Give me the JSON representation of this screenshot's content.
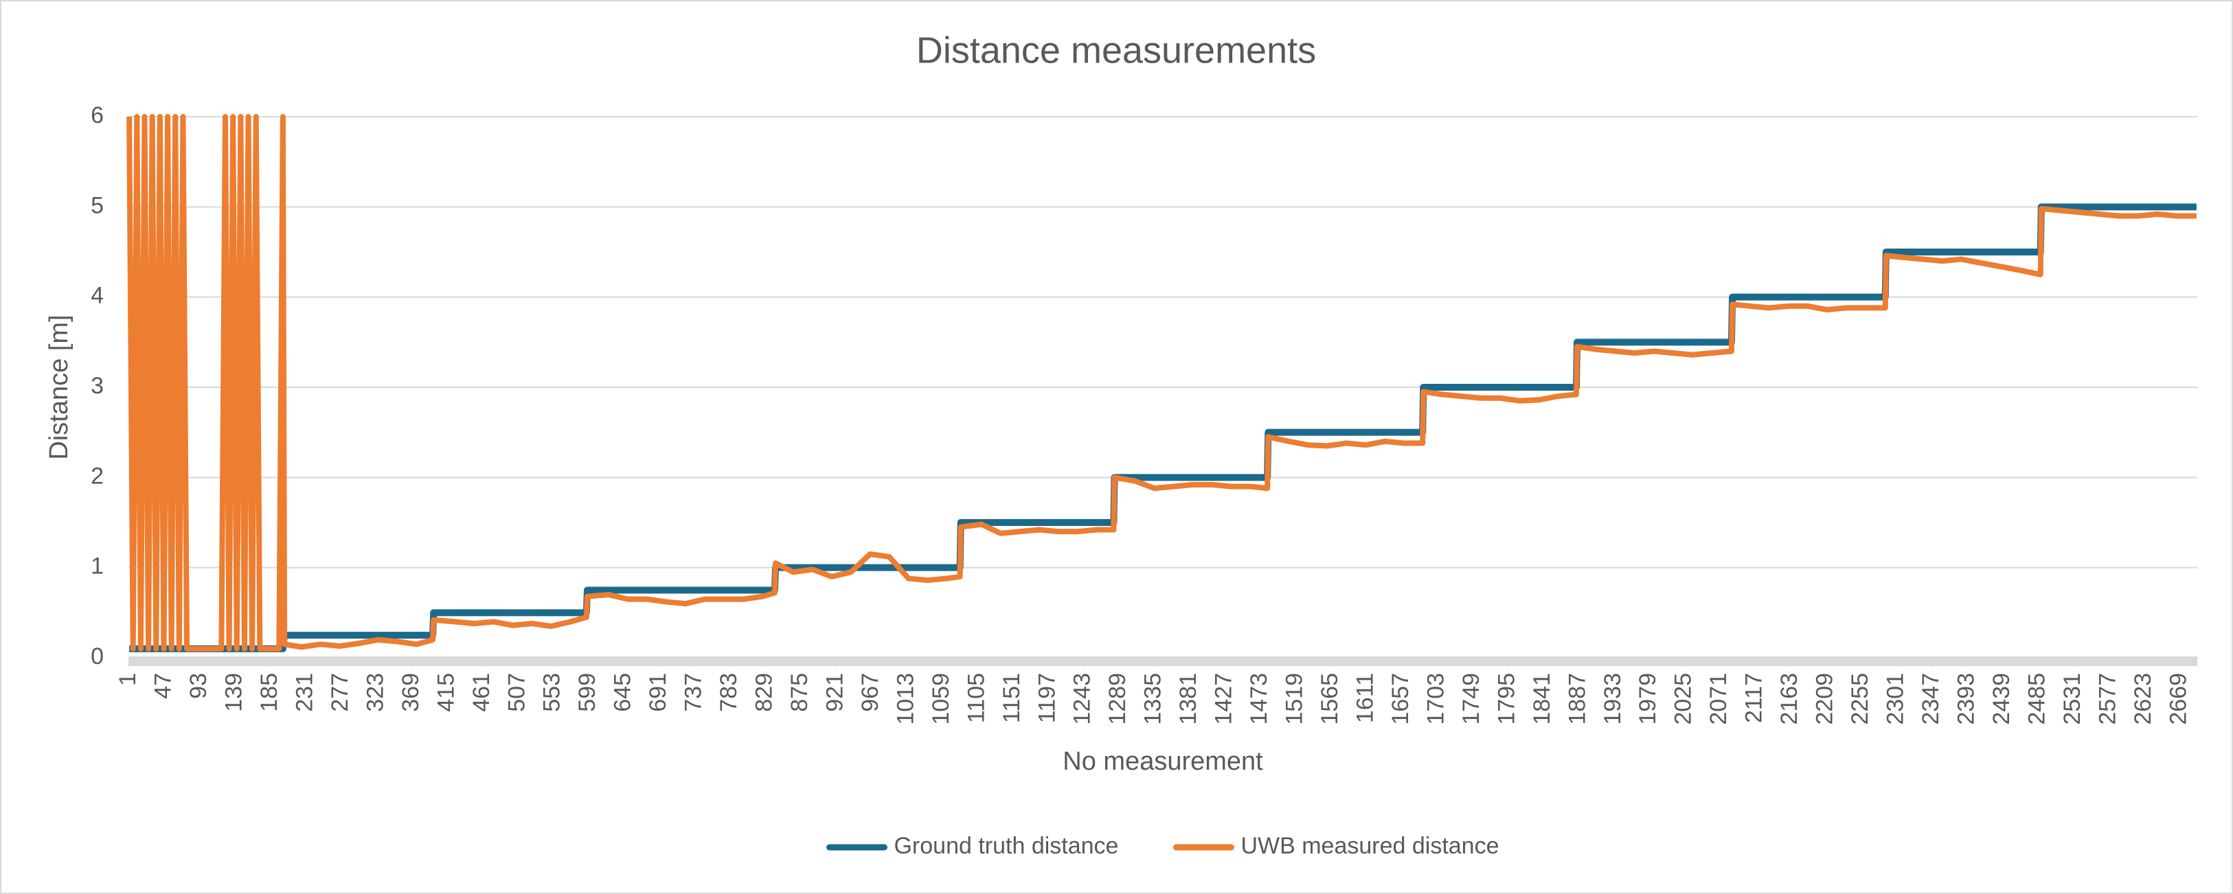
{
  "chart_data": {
    "type": "line",
    "title": "Distance measurements",
    "x_label": "No measurement",
    "y_label": "Distance [m]",
    "x": [
      1,
      6,
      11,
      16,
      21,
      26,
      31,
      36,
      41,
      46,
      51,
      56,
      61,
      66,
      71,
      76,
      81,
      86,
      91,
      96,
      101,
      106,
      111,
      116,
      121,
      126,
      131,
      136,
      141,
      146,
      151,
      156,
      161,
      166,
      171,
      176,
      181,
      186,
      191,
      196,
      201,
      203,
      225,
      250,
      275,
      300,
      325,
      350,
      375,
      396,
      397,
      425,
      450,
      475,
      500,
      525,
      550,
      575,
      596,
      597,
      625,
      650,
      675,
      700,
      725,
      750,
      775,
      800,
      825,
      841,
      842,
      865,
      890,
      915,
      940,
      965,
      990,
      1015,
      1040,
      1065,
      1082,
      1083,
      1110,
      1135,
      1160,
      1185,
      1210,
      1235,
      1260,
      1282,
      1283,
      1310,
      1335,
      1360,
      1385,
      1410,
      1435,
      1460,
      1482,
      1483,
      1510,
      1535,
      1560,
      1585,
      1610,
      1635,
      1660,
      1684,
      1685,
      1710,
      1735,
      1760,
      1785,
      1810,
      1835,
      1860,
      1884,
      1885,
      1910,
      1935,
      1960,
      1985,
      2010,
      2035,
      2060,
      2086,
      2087,
      2110,
      2135,
      2160,
      2185,
      2210,
      2235,
      2260,
      2286,
      2287,
      2310,
      2335,
      2360,
      2385,
      2410,
      2435,
      2460,
      2488,
      2489,
      2515,
      2540,
      2565,
      2590,
      2615,
      2640,
      2665,
      2691
    ],
    "series": [
      {
        "name": "Ground truth distance",
        "color": "#1b6a8c",
        "values": [
          0.1,
          0.1,
          0.1,
          0.1,
          0.1,
          0.1,
          0.1,
          0.1,
          0.1,
          0.1,
          0.1,
          0.1,
          0.1,
          0.1,
          0.1,
          0.1,
          0.1,
          0.1,
          0.1,
          0.1,
          0.1,
          0.1,
          0.1,
          0.1,
          0.1,
          0.1,
          0.1,
          0.1,
          0.1,
          0.1,
          0.1,
          0.1,
          0.1,
          0.1,
          0.1,
          0.1,
          0.1,
          0.1,
          0.1,
          0.1,
          0.1,
          0.25,
          0.25,
          0.25,
          0.25,
          0.25,
          0.25,
          0.25,
          0.25,
          0.25,
          0.5,
          0.5,
          0.5,
          0.5,
          0.5,
          0.5,
          0.5,
          0.5,
          0.5,
          0.75,
          0.75,
          0.75,
          0.75,
          0.75,
          0.75,
          0.75,
          0.75,
          0.75,
          0.75,
          0.75,
          1,
          1,
          1,
          1,
          1,
          1,
          1,
          1,
          1,
          1,
          1,
          1.5,
          1.5,
          1.5,
          1.5,
          1.5,
          1.5,
          1.5,
          1.5,
          1.5,
          2,
          2,
          2,
          2,
          2,
          2,
          2,
          2,
          2,
          2.5,
          2.5,
          2.5,
          2.5,
          2.5,
          2.5,
          2.5,
          2.5,
          2.5,
          3,
          3,
          3,
          3,
          3,
          3,
          3,
          3,
          3,
          3.5,
          3.5,
          3.5,
          3.5,
          3.5,
          3.5,
          3.5,
          3.5,
          3.5,
          4,
          4,
          4,
          4,
          4,
          4,
          4,
          4,
          4,
          4.5,
          4.5,
          4.5,
          4.5,
          4.5,
          4.5,
          4.5,
          4.5,
          4.5,
          5,
          5,
          5,
          5,
          5,
          5,
          5,
          5,
          5
        ]
      },
      {
        "name": "UWB measured distance",
        "color": "#ed7d31",
        "values": [
          6,
          0.1,
          6,
          0.1,
          6,
          0.1,
          6,
          0.1,
          6,
          0.1,
          6,
          0.1,
          6,
          0.1,
          6,
          0.1,
          0.1,
          0.1,
          0.1,
          0.1,
          0.1,
          0.1,
          0.1,
          0.1,
          0.1,
          6,
          0.1,
          6,
          0.1,
          6,
          0.1,
          6,
          0.1,
          6,
          0.1,
          0.1,
          0.1,
          0.1,
          0.1,
          0.1,
          6,
          0.15,
          0.12,
          0.15,
          0.13,
          0.16,
          0.2,
          0.18,
          0.15,
          0.2,
          0.42,
          0.4,
          0.38,
          0.4,
          0.36,
          0.38,
          0.35,
          0.4,
          0.45,
          0.68,
          0.7,
          0.65,
          0.65,
          0.62,
          0.6,
          0.65,
          0.65,
          0.65,
          0.68,
          0.72,
          1.05,
          0.95,
          0.98,
          0.9,
          0.95,
          1.15,
          1.12,
          0.88,
          0.86,
          0.88,
          0.9,
          1.45,
          1.48,
          1.38,
          1.4,
          1.42,
          1.4,
          1.4,
          1.42,
          1.42,
          2,
          1.96,
          1.88,
          1.9,
          1.92,
          1.92,
          1.9,
          1.9,
          1.88,
          2.45,
          2.4,
          2.36,
          2.35,
          2.38,
          2.36,
          2.4,
          2.38,
          2.38,
          2.95,
          2.92,
          2.9,
          2.88,
          2.88,
          2.85,
          2.86,
          2.9,
          2.92,
          3.45,
          3.42,
          3.4,
          3.38,
          3.4,
          3.38,
          3.36,
          3.38,
          3.4,
          3.92,
          3.9,
          3.88,
          3.9,
          3.9,
          3.86,
          3.88,
          3.88,
          3.88,
          4.46,
          4.44,
          4.42,
          4.4,
          4.42,
          4.38,
          4.34,
          4.3,
          4.25,
          4.98,
          4.96,
          4.94,
          4.92,
          4.9,
          4.9,
          4.92,
          4.9,
          4.9
        ]
      }
    ],
    "xlim": [
      0,
      2692
    ],
    "xticks": [
      1,
      47,
      93,
      139,
      185,
      231,
      277,
      323,
      369,
      415,
      461,
      507,
      553,
      599,
      645,
      691,
      737,
      783,
      829,
      875,
      921,
      967,
      1013,
      1059,
      1105,
      1151,
      1197,
      1243,
      1289,
      1335,
      1381,
      1427,
      1473,
      1519,
      1565,
      1611,
      1657,
      1703,
      1749,
      1795,
      1841,
      1887,
      1933,
      1979,
      2025,
      2071,
      2117,
      2163,
      2209,
      2255,
      2301,
      2347,
      2393,
      2439,
      2485,
      2531,
      2577,
      2623,
      2669
    ],
    "ylim": [
      0,
      6
    ],
    "yticks": [
      0,
      1,
      2,
      3,
      4,
      5,
      6
    ],
    "grid": true,
    "legend": "bottom"
  }
}
